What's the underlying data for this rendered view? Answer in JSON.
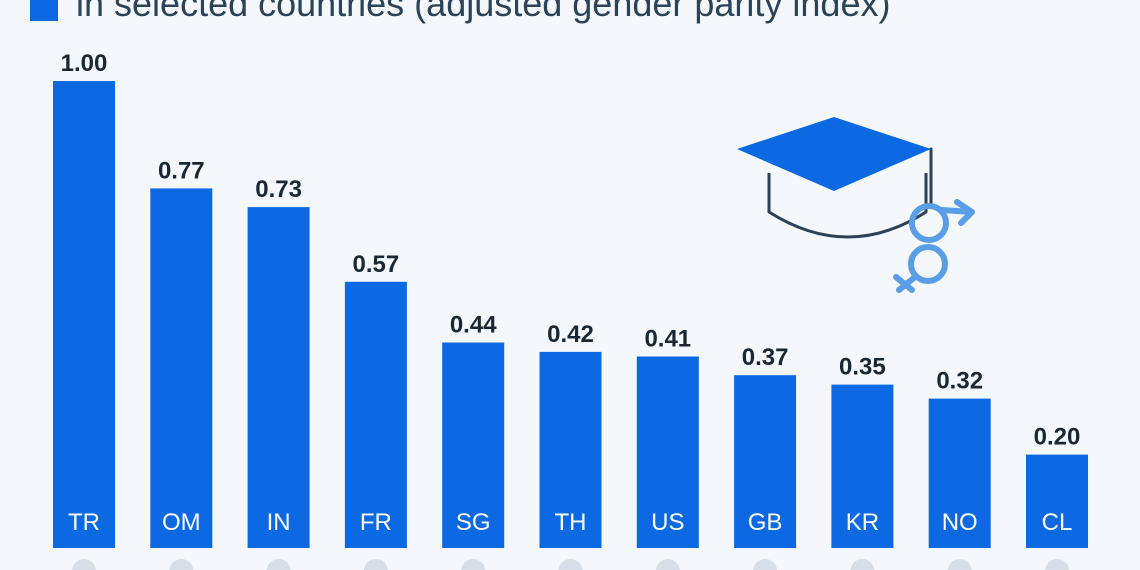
{
  "header": {
    "legend_text": "in selected countries (adjusted gender parity index)"
  },
  "colors": {
    "bar": "#0d69e1",
    "value_text": "#1b2733",
    "legend_text": "#2b4257",
    "background": "#f4f7fb",
    "icon_blue": "#5b9ee8",
    "icon_dark": "#2b4257"
  },
  "icons": {
    "graduation_cap": "graduation-cap-icon",
    "gender_symbol": "gender-symbol-icon"
  },
  "chart_data": {
    "type": "bar",
    "categories": [
      "TR",
      "OM",
      "IN",
      "FR",
      "SG",
      "TH",
      "US",
      "GB",
      "KR",
      "NO",
      "CL"
    ],
    "values": [
      1.0,
      0.77,
      0.73,
      0.57,
      0.44,
      0.42,
      0.41,
      0.37,
      0.35,
      0.32,
      0.2
    ],
    "value_labels": [
      "1.00",
      "0.77",
      "0.73",
      "0.57",
      "0.44",
      "0.42",
      "0.41",
      "0.37",
      "0.35",
      "0.32",
      "0.20"
    ],
    "ylim": [
      0,
      1.0
    ],
    "grid": false,
    "legend_placement": "top-left"
  }
}
